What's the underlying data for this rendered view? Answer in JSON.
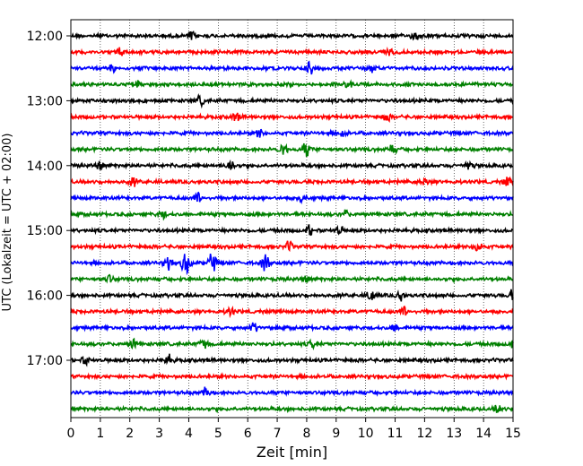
{
  "chart_data": {
    "type": "line",
    "subtype": "helicorder",
    "xlabel": "Zeit  [min]",
    "ylabel": "UTC (Lokalzeit = UTC + 02:00)",
    "xlim": [
      0,
      15
    ],
    "x_ticks": [
      0,
      1,
      2,
      3,
      4,
      5,
      6,
      7,
      8,
      9,
      10,
      11,
      12,
      13,
      14,
      15
    ],
    "x_grid": "dotted vertical at each minute",
    "row_interval_min": 15,
    "y_ticks": [
      "12:00",
      "13:00",
      "14:00",
      "15:00",
      "16:00",
      "17:00"
    ],
    "trace_colors": [
      "#000000",
      "#ff0000",
      "#0000ff",
      "#008000"
    ],
    "rows": [
      {
        "time": "12:00",
        "events": [
          [
            4.1,
            0.35
          ],
          [
            11.7,
            0.4
          ]
        ]
      },
      {
        "time": "12:15",
        "events": [
          [
            1.7,
            0.3
          ],
          [
            10.8,
            0.3
          ]
        ]
      },
      {
        "time": "12:30",
        "events": [
          [
            1.4,
            0.3
          ],
          [
            8.1,
            0.45
          ],
          [
            10.2,
            0.3
          ]
        ]
      },
      {
        "time": "12:45",
        "events": [
          [
            2.2,
            0.25
          ],
          [
            9.4,
            0.25
          ]
        ]
      },
      {
        "time": "13:00",
        "events": [
          [
            4.4,
            0.3
          ]
        ]
      },
      {
        "time": "13:15",
        "events": [
          [
            5.6,
            0.3
          ],
          [
            10.7,
            0.3
          ]
        ]
      },
      {
        "time": "13:30",
        "events": [
          [
            6.4,
            0.3
          ],
          [
            9.2,
            0.25
          ]
        ]
      },
      {
        "time": "13:45",
        "events": [
          [
            7.2,
            0.45
          ],
          [
            8.0,
            0.5
          ],
          [
            10.9,
            0.35
          ]
        ]
      },
      {
        "time": "14:00",
        "events": [
          [
            1.0,
            0.35
          ],
          [
            5.4,
            0.55
          ],
          [
            13.5,
            0.35
          ]
        ]
      },
      {
        "time": "14:15",
        "events": [
          [
            2.1,
            0.3
          ],
          [
            12.0,
            0.3
          ],
          [
            14.8,
            0.3
          ]
        ]
      },
      {
        "time": "14:30",
        "events": [
          [
            4.3,
            0.35
          ],
          [
            7.8,
            0.3
          ]
        ]
      },
      {
        "time": "14:45",
        "events": [
          [
            3.1,
            0.25
          ],
          [
            9.3,
            0.25
          ]
        ]
      },
      {
        "time": "15:00",
        "events": [
          [
            8.1,
            0.35
          ],
          [
            9.1,
            0.3
          ]
        ]
      },
      {
        "time": "15:15",
        "events": [
          [
            7.4,
            0.3
          ],
          [
            13.8,
            0.5
          ]
        ]
      },
      {
        "time": "15:30",
        "events": [
          [
            3.3,
            0.45
          ],
          [
            3.9,
            1.0
          ],
          [
            4.8,
            0.7
          ],
          [
            6.6,
            0.6
          ]
        ]
      },
      {
        "time": "15:45",
        "events": [
          [
            1.3,
            0.25
          ],
          [
            8.0,
            0.25
          ]
        ]
      },
      {
        "time": "16:00",
        "events": [
          [
            10.2,
            0.5
          ],
          [
            11.2,
            0.4
          ],
          [
            15.0,
            0.55
          ]
        ]
      },
      {
        "time": "16:15",
        "events": [
          [
            5.4,
            0.3
          ],
          [
            11.3,
            0.3
          ]
        ]
      },
      {
        "time": "16:30",
        "events": [
          [
            6.2,
            0.35
          ],
          [
            11.0,
            0.3
          ]
        ]
      },
      {
        "time": "16:45",
        "events": [
          [
            2.1,
            0.35
          ],
          [
            4.5,
            0.4
          ],
          [
            8.2,
            0.3
          ],
          [
            15.0,
            0.35
          ]
        ]
      },
      {
        "time": "17:00",
        "events": [
          [
            0.5,
            0.3
          ],
          [
            3.3,
            0.35
          ]
        ]
      },
      {
        "time": "17:15",
        "events": []
      },
      {
        "time": "17:30",
        "events": [
          [
            4.6,
            0.35
          ]
        ]
      },
      {
        "time": "17:45",
        "events": [
          [
            14.5,
            0.3
          ]
        ]
      }
    ]
  }
}
